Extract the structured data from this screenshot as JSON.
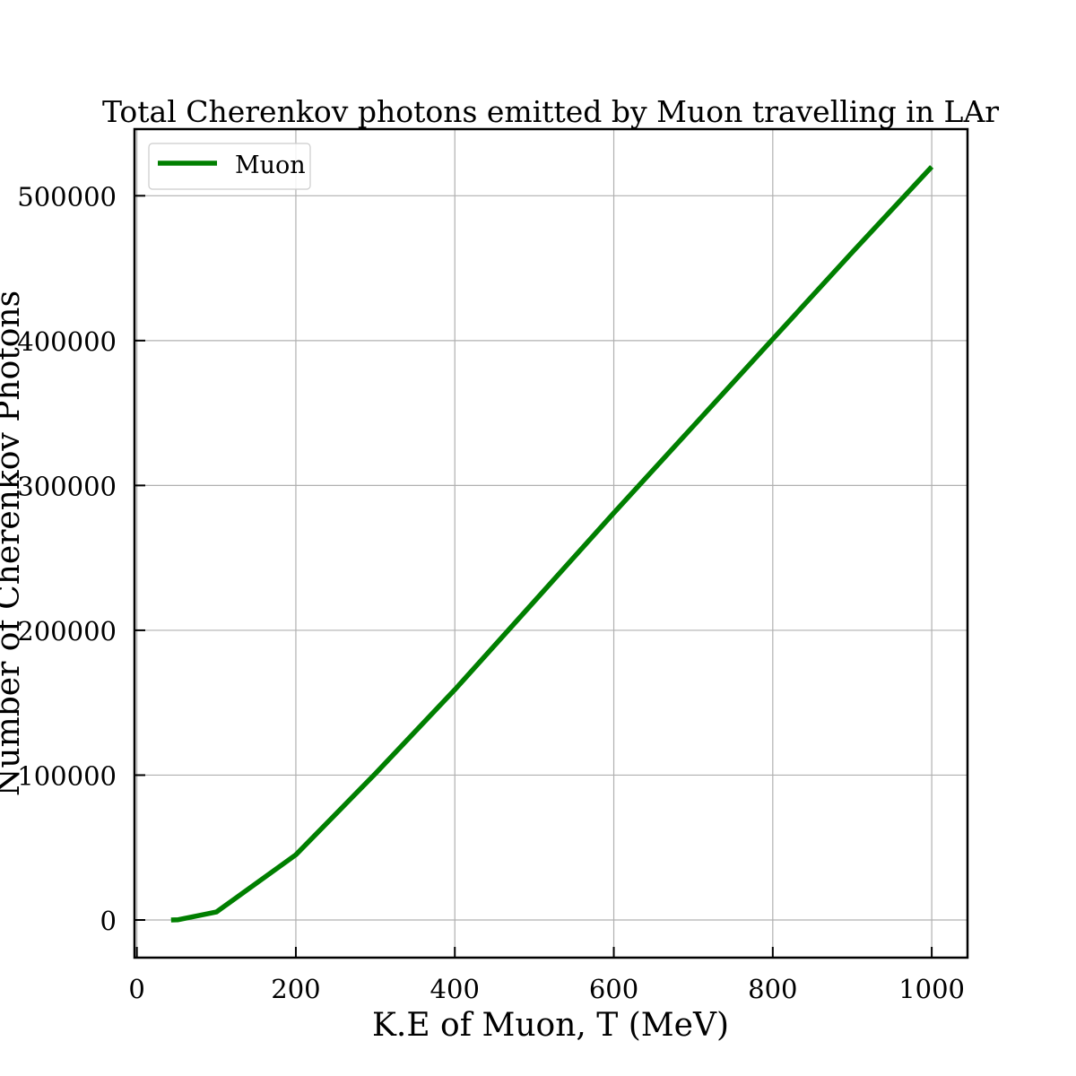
{
  "chart_data": {
    "type": "line",
    "title": "Total Cherenkov photons emitted by Muon travelling in LAr",
    "xlabel": "K.E of Muon, T (MeV)",
    "ylabel": "Number of Cherenkov Photons",
    "xlim": [
      -3,
      1045
    ],
    "ylim": [
      -26000,
      546000
    ],
    "xticks": [
      0,
      200,
      400,
      600,
      800,
      1000
    ],
    "xtick_labels": [
      "0",
      "200",
      "400",
      "600",
      "800",
      "1000"
    ],
    "yticks": [
      0,
      100000,
      200000,
      300000,
      400000,
      500000
    ],
    "ytick_labels": [
      "0",
      "100000",
      "200000",
      "300000",
      "400000",
      "500000"
    ],
    "grid": true,
    "legend_position": "upper-left",
    "series": [
      {
        "name": "Muon",
        "color": "#007f00",
        "x": [
          43,
          52,
          100,
          200,
          300,
          400,
          500,
          600,
          700,
          800,
          900,
          1000
        ],
        "y": [
          0,
          200,
          5500,
          45000,
          101000,
          159000,
          220000,
          281000,
          341000,
          401000,
          461000,
          520000
        ]
      }
    ]
  }
}
